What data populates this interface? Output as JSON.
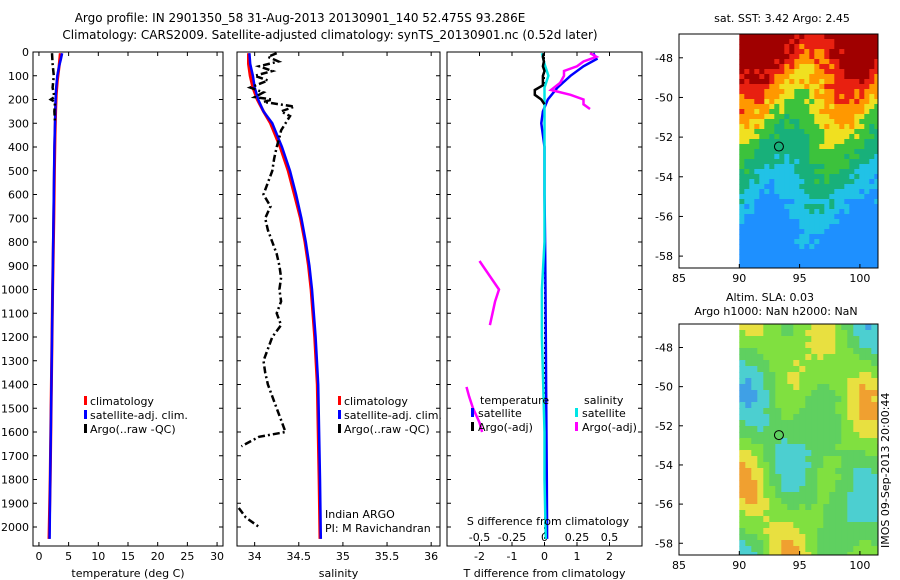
{
  "header": {
    "line1": "Argo profile: IN 2901350_58 31-Aug-2013 20130901_140 52.475S 93.286E",
    "line2": "Climatology: CARS2009. Satellite-adjusted climatology: synTS_20130901.nc (0.52d later)"
  },
  "colors": {
    "climatology": "#ff0000",
    "satellite": "#0000ff",
    "argo": "#000000",
    "sal_satellite": "#00e5e5",
    "sal_argo": "#ff00ff"
  },
  "chart_data": [
    {
      "type": "line",
      "name": "temperature",
      "xlabel": "temperature (deg C)",
      "ylabel": "depth",
      "xlim": [
        -1,
        31
      ],
      "ylim": [
        2080,
        0
      ],
      "xticks": [
        "0",
        "5",
        "10",
        "15",
        "20",
        "25",
        "30"
      ],
      "xtick_values": [
        0,
        5,
        10,
        15,
        20,
        25,
        30
      ],
      "yticks": [
        "0",
        "100",
        "200",
        "300",
        "400",
        "500",
        "600",
        "700",
        "800",
        "900",
        "1000",
        "1100",
        "1200",
        "1300",
        "1400",
        "1500",
        "1600",
        "1700",
        "1800",
        "1900",
        "2000"
      ],
      "ytick_values": [
        0,
        100,
        200,
        300,
        400,
        500,
        600,
        700,
        800,
        900,
        1000,
        1100,
        1200,
        1300,
        1400,
        1500,
        1600,
        1700,
        1800,
        1900,
        2000
      ],
      "legend": [
        "climatology",
        "satellite-adj. clim.",
        "Argo(..raw -QC)"
      ],
      "series": [
        {
          "name": "climatology",
          "depth": [
            5,
            60,
            120,
            180,
            250,
            350,
            500,
            700,
            1000,
            1400,
            1800,
            2050
          ],
          "value": [
            3.6,
            3.4,
            3.1,
            2.9,
            2.8,
            2.7,
            2.6,
            2.5,
            2.3,
            2.1,
            1.9,
            1.7
          ]
        },
        {
          "name": "satellite-adj. clim.",
          "depth": [
            5,
            30,
            60,
            100,
            150,
            200,
            300,
            400,
            600,
            800,
            1000,
            1400,
            1800,
            2050
          ],
          "value": [
            3.9,
            3.7,
            3.4,
            3.1,
            2.9,
            2.8,
            2.7,
            2.6,
            2.5,
            2.4,
            2.3,
            2.1,
            1.9,
            1.8
          ]
        },
        {
          "name": "Argo(..raw -QC)",
          "depth": [
            5,
            50,
            100,
            150,
            190,
            200,
            210,
            250,
            300
          ],
          "value": [
            2.2,
            2.3,
            2.5,
            2.3,
            2.6,
            2.0,
            2.7,
            2.6,
            2.7
          ]
        }
      ]
    },
    {
      "type": "line",
      "name": "salinity",
      "xlabel": "salinity",
      "xlim": [
        33.8,
        36.1
      ],
      "ylim": [
        2080,
        0
      ],
      "xticks": [
        "34",
        "34.5",
        "35",
        "35.5",
        "36"
      ],
      "xtick_values": [
        34,
        34.5,
        35,
        35.5,
        36
      ],
      "legend": [
        "climatology",
        "satellite-adj. clim.",
        "Argo(..raw -QC)"
      ],
      "annotation": [
        "Indian ARGO",
        "PI: M Ravichandran"
      ],
      "series": [
        {
          "name": "climatology",
          "depth": [
            5,
            50,
            100,
            150,
            200,
            250,
            300,
            400,
            500,
            600,
            700,
            800,
            900,
            1000,
            1200,
            1400,
            1600,
            1800,
            2050
          ],
          "value": [
            33.93,
            33.93,
            33.95,
            33.98,
            34.03,
            34.1,
            34.18,
            34.29,
            34.38,
            34.45,
            34.52,
            34.57,
            34.61,
            34.64,
            34.68,
            34.71,
            34.72,
            34.73,
            34.74
          ]
        },
        {
          "name": "satellite-adj. clim.",
          "depth": [
            5,
            50,
            100,
            150,
            200,
            250,
            300,
            400,
            500,
            600,
            700,
            800,
            900,
            1000,
            1200,
            1400,
            1600,
            1800,
            2050
          ],
          "value": [
            33.94,
            33.95,
            33.98,
            34.0,
            34.04,
            34.1,
            34.2,
            34.31,
            34.4,
            34.47,
            34.53,
            34.58,
            34.62,
            34.65,
            34.69,
            34.72,
            34.73,
            34.74,
            34.75
          ]
        },
        {
          "name": "Argo(..raw -QC)",
          "depth": [
            5,
            20,
            40,
            60,
            80,
            100,
            120,
            150,
            170,
            190,
            200,
            210,
            230,
            250,
            270,
            300,
            330,
            360,
            400,
            450,
            500,
            550,
            600,
            650,
            700,
            750,
            800,
            850,
            900,
            950,
            1000,
            1050,
            1100,
            1150,
            1200,
            1250,
            1300,
            1350,
            1400,
            1450,
            1500,
            1550,
            1600,
            1620,
            1640,
            1660
          ],
          "value": [
            34.25,
            34.15,
            34.27,
            34.05,
            34.2,
            34.0,
            34.15,
            33.95,
            34.1,
            34.0,
            34.2,
            34.1,
            34.45,
            34.3,
            34.4,
            34.35,
            34.3,
            34.28,
            34.25,
            34.22,
            34.2,
            34.15,
            34.1,
            34.18,
            34.12,
            34.15,
            34.2,
            34.25,
            34.28,
            34.3,
            34.28,
            34.3,
            34.25,
            34.3,
            34.2,
            34.15,
            34.1,
            34.12,
            34.15,
            34.2,
            34.25,
            34.3,
            34.35,
            34.05,
            33.95,
            33.85
          ]
        },
        {
          "name": "Argo(..raw -QC) deep",
          "depth": [
            1920,
            1960,
            2000
          ],
          "value": [
            33.82,
            33.9,
            34.05
          ]
        }
      ]
    },
    {
      "type": "line",
      "name": "difference from climatology",
      "xlabel": "T difference from climatology",
      "xlabel_top": "S difference from climatology",
      "xlim": [
        -3,
        3
      ],
      "ylim": [
        2080,
        0
      ],
      "xticks": [
        "-2",
        "-1",
        "0",
        "1",
        "2"
      ],
      "xtick_values": [
        -2,
        -1,
        0,
        1,
        2
      ],
      "xticks_top": [
        "-0.5",
        "-0.25",
        "0",
        "0.25",
        "0.5"
      ],
      "xtick_top_values": [
        -0.5,
        -0.25,
        0,
        0.25,
        0.5
      ],
      "legend_titles": [
        "temperature",
        "salinity"
      ],
      "legend": [
        "satellite",
        "Argo(-adj)",
        "satellite",
        "Argo(-adj)"
      ],
      "series": [
        {
          "name": "T satellite",
          "depth": [
            5,
            30,
            60,
            100,
            150,
            200,
            250,
            300,
            350,
            400,
            500,
            600,
            800,
            1000,
            1400,
            1800,
            2050
          ],
          "value": [
            1.5,
            1.6,
            1.2,
            0.8,
            0.4,
            0.1,
            -0.05,
            -0.1,
            -0.05,
            0.0,
            0.0,
            0.0,
            0.02,
            0.03,
            0.05,
            0.07,
            0.08
          ]
        },
        {
          "name": "S satellite",
          "depth": [
            5,
            50,
            100,
            150,
            200,
            300,
            400,
            600,
            800,
            1000,
            1200,
            1400,
            1600,
            1800,
            2050
          ],
          "value": [
            -0.02,
            0.0,
            0.03,
            0.0,
            0.0,
            0.0,
            0.0,
            0.0,
            0.0,
            -0.02,
            -0.02,
            -0.01,
            0.0,
            0.0,
            0.01
          ]
        },
        {
          "name": "T Argo(-adj)",
          "depth": [
            5,
            20,
            40,
            60,
            80,
            100,
            120,
            140,
            160,
            180,
            200,
            220
          ],
          "value": [
            -0.02,
            -0.05,
            -0.02,
            -0.05,
            0.0,
            -0.05,
            -0.05,
            -0.05,
            -0.3,
            -0.3,
            -0.1,
            0.0
          ]
        },
        {
          "name": "S Argo(-adj)",
          "depth": [
            5,
            20,
            40,
            60,
            80,
            100,
            130,
            160,
            180,
            200,
            220,
            240
          ],
          "value": [
            0.35,
            0.4,
            0.3,
            0.25,
            0.15,
            0.15,
            0.12,
            0.05,
            0.2,
            0.3,
            0.3,
            0.35
          ]
        },
        {
          "name": "S Argo(-adj) mid",
          "depth": [
            880,
            920,
            960,
            1000,
            1050,
            1100,
            1150
          ],
          "value": [
            -0.5,
            -0.45,
            -0.4,
            -0.35,
            -0.38,
            -0.4,
            -0.42
          ]
        },
        {
          "name": "S Argo(-adj) deep",
          "depth": [
            1410,
            1450,
            1500,
            1560,
            1600
          ],
          "value": [
            -0.6,
            -0.58,
            -0.55,
            -0.5,
            -0.48
          ]
        }
      ]
    },
    {
      "type": "heatmap",
      "name": "sat SST map",
      "title": "sat. SST: 3.42  Argo: 2.45",
      "xticks": [
        "85",
        "90",
        "95",
        "100"
      ],
      "xtick_values": [
        85,
        90,
        95,
        100
      ],
      "yticks": [
        "-48",
        "-50",
        "-52",
        "-54",
        "-56",
        "-58"
      ],
      "ytick_values": [
        -48,
        -50,
        -52,
        -54,
        -56,
        -58
      ],
      "xlim": [
        85,
        101.5
      ],
      "ylim": [
        -58.6,
        -46.8
      ],
      "data_xlim": [
        90,
        101.5
      ],
      "marker": {
        "lon": 93.286,
        "lat": -52.475
      }
    },
    {
      "type": "heatmap",
      "name": "SLA map",
      "title_lines": [
        "Altim. SLA: 0.03",
        "Argo h1000: NaN  h2000: NaN"
      ],
      "xticks": [
        "85",
        "90",
        "95",
        "100"
      ],
      "xtick_values": [
        85,
        90,
        95,
        100
      ],
      "yticks": [
        "-48",
        "-50",
        "-52",
        "-54",
        "-56",
        "-58"
      ],
      "ytick_values": [
        -48,
        -50,
        -52,
        -54,
        -56,
        -58
      ],
      "xlim": [
        85,
        101.5
      ],
      "ylim": [
        -58.6,
        -46.8
      ],
      "data_xlim": [
        90,
        101.5
      ],
      "marker": {
        "lon": 93.286,
        "lat": -52.475
      }
    }
  ],
  "footer": {
    "stamp": "IMOS 09-Sep-2013 20:00:44"
  }
}
